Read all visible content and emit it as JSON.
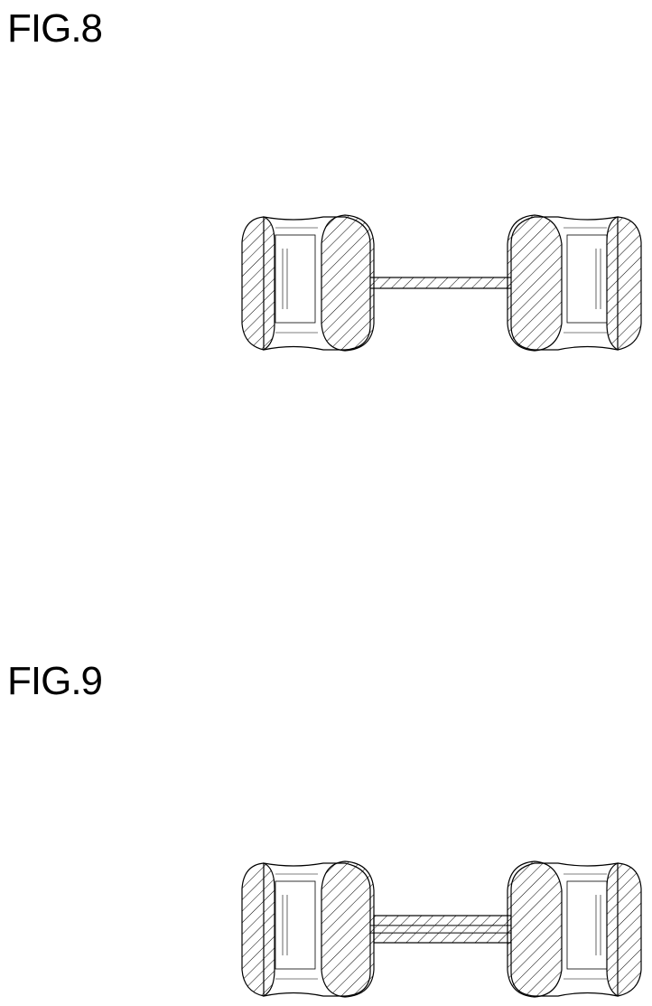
{
  "figures": [
    {
      "label": "FIG.8",
      "variant": "single-shaft"
    },
    {
      "label": "FIG.9",
      "variant": "sleeved-shaft"
    }
  ],
  "colors": {
    "line": "#000000",
    "hatch": "#000000",
    "background": "#ffffff"
  },
  "icons": {
    "roller": "hatched-roller-icon",
    "shaft": "hatched-shaft-icon"
  }
}
